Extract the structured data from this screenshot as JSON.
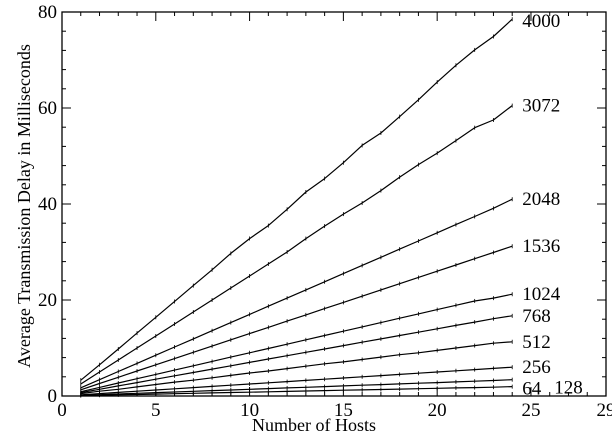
{
  "chart_data": {
    "type": "line",
    "title": "",
    "xlabel": "Number of Hosts",
    "ylabel": "Average Transmission Delay in Milliseconds",
    "xlim": [
      0,
      29
    ],
    "ylim": [
      0,
      80
    ],
    "xticks": [
      0,
      5,
      10,
      15,
      20,
      25,
      29
    ],
    "yticks": [
      0,
      20,
      40,
      60,
      80
    ],
    "grid": false,
    "legend": "inline labels at right end of each line",
    "x": [
      1,
      2,
      3,
      4,
      5,
      6,
      7,
      8,
      9,
      10,
      11,
      12,
      13,
      14,
      15,
      16,
      17,
      18,
      19,
      20,
      21,
      22,
      23,
      24
    ],
    "series": [
      {
        "name": "4000",
        "values": [
          3.3,
          6.5,
          9.8,
          13.1,
          16.4,
          19.7,
          23,
          26.3,
          29.7,
          32.8,
          35.5,
          38.9,
          42.5,
          45.3,
          48.6,
          52.2,
          54.8,
          58.2,
          61.7,
          65.4,
          68.9,
          72.1,
          74.9,
          78.5
        ]
      },
      {
        "name": "3072",
        "values": [
          2.5,
          5,
          7.5,
          10,
          12.5,
          15,
          17.5,
          20,
          22.5,
          25,
          27.5,
          30,
          32.8,
          35.4,
          37.9,
          40.2,
          42.8,
          45.6,
          48.2,
          50.6,
          53.2,
          55.9,
          57.5,
          60.5
        ]
      },
      {
        "name": "2048",
        "values": [
          1.7,
          3.4,
          5.1,
          6.8,
          8.5,
          10.2,
          11.9,
          13.6,
          15.3,
          17,
          18.7,
          20.4,
          22.1,
          23.8,
          25.5,
          27.2,
          28.9,
          30.6,
          32.3,
          34,
          35.7,
          37.4,
          39.1,
          41
        ]
      },
      {
        "name": "1536",
        "values": [
          1.3,
          2.6,
          3.9,
          5.2,
          6.5,
          7.8,
          9.1,
          10.4,
          11.7,
          13,
          14.3,
          15.6,
          16.9,
          18.2,
          19.5,
          20.8,
          22.1,
          23.4,
          24.7,
          26,
          27.3,
          28.6,
          29.9,
          31.2
        ]
      },
      {
        "name": "1024",
        "values": [
          0.9,
          1.8,
          2.7,
          3.6,
          4.5,
          5.4,
          6.3,
          7.2,
          8.1,
          9,
          9.9,
          10.8,
          11.7,
          12.6,
          13.5,
          14.4,
          15.3,
          16.2,
          17.1,
          18,
          18.9,
          19.8,
          20.4,
          21.2
        ]
      },
      {
        "name": "768",
        "values": [
          0.7,
          1.4,
          2.1,
          2.8,
          3.5,
          4.2,
          4.9,
          5.6,
          6.3,
          7,
          7.7,
          8.4,
          9.1,
          9.8,
          10.5,
          11.2,
          11.9,
          12.6,
          13.3,
          14,
          14.7,
          15.4,
          16.1,
          16.7
        ]
      },
      {
        "name": "512",
        "values": [
          0.5,
          1,
          1.4,
          1.9,
          2.4,
          2.9,
          3.3,
          3.8,
          4.3,
          4.8,
          5.2,
          5.7,
          6.2,
          6.7,
          7.1,
          7.6,
          8.1,
          8.6,
          9,
          9.5,
          10,
          10.5,
          11,
          11.3
        ]
      },
      {
        "name": "256",
        "values": [
          0.25,
          0.5,
          0.75,
          1,
          1.25,
          1.5,
          1.75,
          2,
          2.25,
          2.5,
          2.75,
          3,
          3.25,
          3.5,
          3.75,
          4,
          4.25,
          4.5,
          4.75,
          5,
          5.25,
          5.5,
          5.75,
          6
        ]
      },
      {
        "name": "128",
        "values": [
          0.14,
          0.28,
          0.42,
          0.56,
          0.7,
          0.84,
          0.98,
          1.12,
          1.26,
          1.4,
          1.54,
          1.68,
          1.82,
          1.96,
          2.1,
          2.24,
          2.38,
          2.52,
          2.66,
          2.8,
          2.94,
          3.08,
          3.22,
          3.4
        ]
      },
      {
        "name": "64",
        "values": [
          0.08,
          0.16,
          0.24,
          0.32,
          0.4,
          0.48,
          0.56,
          0.64,
          0.72,
          0.8,
          0.88,
          0.96,
          1.04,
          1.12,
          1.2,
          1.28,
          1.36,
          1.44,
          1.52,
          1.6,
          1.68,
          1.76,
          1.84,
          1.95
        ]
      }
    ]
  }
}
